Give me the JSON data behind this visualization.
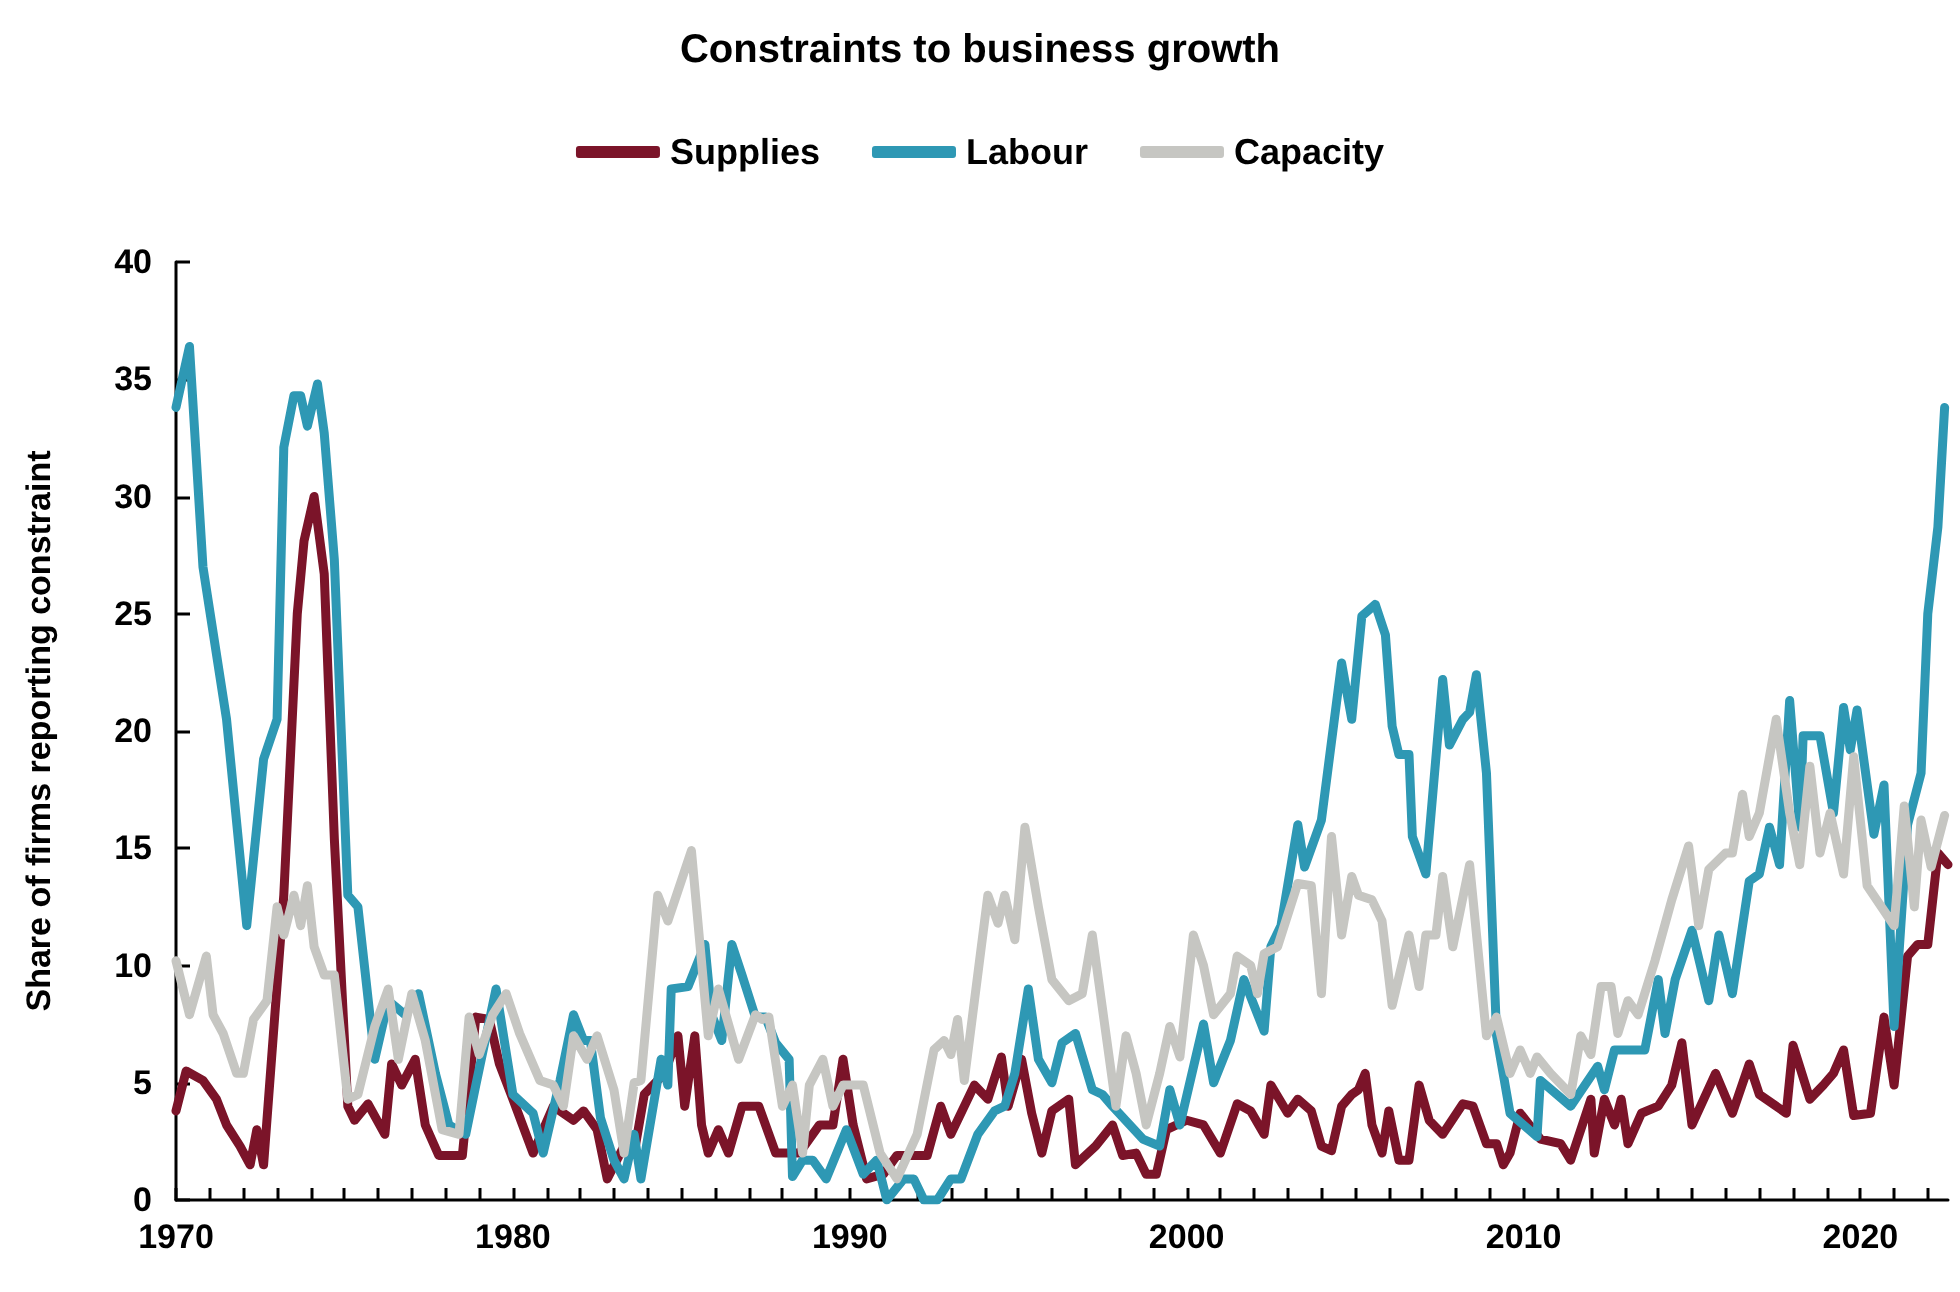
{
  "chart_data": {
    "type": "line",
    "title": "Constraints to business growth",
    "ylabel": "Share of firms reporting constraint",
    "legend": "top",
    "line_style": "solid",
    "xlim": [
      1970,
      2022.6
    ],
    "ylim": [
      0,
      40
    ],
    "yticks": [
      0,
      5,
      10,
      15,
      20,
      25,
      30,
      35,
      40
    ],
    "xticks": [
      1970,
      {
        "value": 1971,
        "label": null
      },
      {
        "value": 1972,
        "label": null
      },
      {
        "value": 1973,
        "label": null
      },
      {
        "value": 1974,
        "label": null
      },
      {
        "value": 1975,
        "label": null
      },
      {
        "value": 1976,
        "label": null
      },
      {
        "value": 1977,
        "label": null
      },
      {
        "value": 1978,
        "label": null
      },
      {
        "value": 1979,
        "label": null
      },
      1980,
      {
        "value": 1981,
        "label": null
      },
      {
        "value": 1982,
        "label": null
      },
      {
        "value": 1983,
        "label": null
      },
      {
        "value": 1984,
        "label": null
      },
      {
        "value": 1985,
        "label": null
      },
      {
        "value": 1986,
        "label": null
      },
      {
        "value": 1987,
        "label": null
      },
      {
        "value": 1988,
        "label": null
      },
      {
        "value": 1989,
        "label": null
      },
      1990,
      {
        "value": 1991,
        "label": null
      },
      {
        "value": 1992,
        "label": null
      },
      {
        "value": 1993,
        "label": null
      },
      {
        "value": 1994,
        "label": null
      },
      {
        "value": 1995,
        "label": null
      },
      {
        "value": 1996,
        "label": null
      },
      {
        "value": 1997,
        "label": null
      },
      {
        "value": 1998,
        "label": null
      },
      {
        "value": 1999,
        "label": null
      },
      2000,
      {
        "value": 2001,
        "label": null
      },
      {
        "value": 2002,
        "label": null
      },
      {
        "value": 2003,
        "label": null
      },
      {
        "value": 2004,
        "label": null
      },
      {
        "value": 2005,
        "label": null
      },
      {
        "value": 2006,
        "label": null
      },
      {
        "value": 2007,
        "label": null
      },
      {
        "value": 2008,
        "label": null
      },
      {
        "value": 2009,
        "label": null
      },
      2010,
      {
        "value": 2011,
        "label": null
      },
      {
        "value": 2012,
        "label": null
      },
      {
        "value": 2013,
        "label": null
      },
      {
        "value": 2014,
        "label": null
      },
      {
        "value": 2015,
        "label": null
      },
      {
        "value": 2016,
        "label": null
      },
      {
        "value": 2017,
        "label": null
      },
      {
        "value": 2018,
        "label": null
      },
      {
        "value": 2019,
        "label": null
      },
      2020,
      {
        "value": 2021,
        "label": null
      },
      {
        "value": 2022,
        "label": null
      }
    ],
    "series": [
      {
        "name": "Supplies",
        "color": "#7b1429",
        "x": [
          1970.0,
          1970.3,
          1970.8,
          1971.2,
          1971.5,
          1971.9,
          1972.2,
          1972.4,
          1972.6,
          1973.2,
          1973.6,
          1973.8,
          1974.1,
          1974.4,
          1974.7,
          1975.1,
          1975.3,
          1975.7,
          1976.2,
          1976.4,
          1976.7,
          1977.1,
          1977.4,
          1977.8,
          1978.5,
          1978.9,
          1979.3,
          1979.6,
          1980.0,
          1980.6,
          1981.2,
          1981.8,
          1982.1,
          1982.5,
          1982.8,
          1983.3,
          1983.6,
          1983.9,
          1984.5,
          1984.9,
          1985.1,
          1985.4,
          1985.6,
          1985.8,
          1986.1,
          1986.4,
          1986.8,
          1987.3,
          1987.8,
          1988.5,
          1989.1,
          1989.5,
          1989.8,
          1990.1,
          1990.5,
          1991.0,
          1991.4,
          1992.3,
          1992.7,
          1993.0,
          1993.7,
          1994.1,
          1994.5,
          1994.7,
          1995.1,
          1995.4,
          1995.7,
          1996.0,
          1996.5,
          1996.7,
          1997.3,
          1997.8,
          1998.1,
          1998.5,
          1998.8,
          1999.1,
          1999.4,
          2000.0,
          2000.5,
          2001.0,
          2001.5,
          2001.9,
          2002.3,
          2002.5,
          2003.0,
          2003.3,
          2003.7,
          2004.0,
          2004.3,
          2004.6,
          2004.9,
          2005.1,
          2005.3,
          2005.5,
          2005.8,
          2006.0,
          2006.3,
          2006.6,
          2006.9,
          2007.2,
          2007.6,
          2008.2,
          2008.5,
          2008.9,
          2009.2,
          2009.4,
          2009.6,
          2009.9,
          2010.5,
          2011.1,
          2011.4,
          2012.0,
          2012.1,
          2012.4,
          2012.7,
          2012.9,
          2013.1,
          2013.5,
          2014.0,
          2014.4,
          2014.7,
          2015.0,
          2015.7,
          2016.2,
          2016.7,
          2017.0,
          2017.8,
          2018.0,
          2018.5,
          2018.9,
          2019.2,
          2019.5,
          2019.8,
          2020.3,
          2020.7,
          2021.0,
          2021.4,
          2021.7,
          2022.0,
          2022.3,
          2022.6
        ],
        "values": [
          3.8,
          5.5,
          5.1,
          4.3,
          3.2,
          2.3,
          1.5,
          3,
          1.5,
          13,
          25,
          28.1,
          30,
          26.7,
          15.4,
          4,
          3.4,
          4.1,
          2.8,
          5.8,
          4.9,
          6,
          3.2,
          1.9,
          1.9,
          7.8,
          7.7,
          5.8,
          4.3,
          2,
          4,
          3.4,
          3.8,
          3,
          0.9,
          2.3,
          2,
          4.5,
          5.4,
          7,
          4,
          7,
          3.2,
          2,
          3,
          2,
          4,
          4,
          2,
          2,
          3.2,
          3.2,
          6,
          3.2,
          0.9,
          1.1,
          1.9,
          1.9,
          4,
          2.8,
          4.9,
          4.3,
          6.1,
          4,
          6,
          3.7,
          2,
          3.8,
          4.3,
          1.5,
          2.3,
          3.2,
          1.9,
          2,
          1.1,
          1.1,
          3,
          3.4,
          3.2,
          2,
          4.1,
          3.8,
          2.8,
          4.9,
          3.7,
          4.3,
          3.8,
          2.3,
          2.1,
          4,
          4.5,
          4.7,
          5.4,
          3.2,
          2,
          3.8,
          1.7,
          1.7,
          4.9,
          3.4,
          2.8,
          4.1,
          4,
          2.4,
          2.4,
          1.5,
          2,
          3.7,
          2.6,
          2.4,
          1.7,
          4.3,
          2,
          4.3,
          3.2,
          4.3,
          2.4,
          3.7,
          4,
          4.9,
          6.7,
          3.2,
          5.4,
          3.7,
          5.8,
          4.5,
          3.7,
          6.6,
          4.3,
          4.9,
          5.4,
          6.4,
          3.6,
          3.7,
          7.8,
          4.9,
          10.4,
          10.9,
          10.9,
          14.8,
          14.3
        ]
      },
      {
        "name": "Labour",
        "color": "#2e98b4",
        "x": [
          1970.0,
          1970.4,
          1970.8,
          1971.5,
          1972.1,
          1972.6,
          1973.0,
          1973.2,
          1973.5,
          1973.7,
          1973.9,
          1974.2,
          1974.4,
          1974.7,
          1975.1,
          1975.4,
          1975.9,
          1976.3,
          1976.8,
          1977.2,
          1977.7,
          1978.1,
          1978.6,
          1978.9,
          1979.5,
          1980.0,
          1980.6,
          1980.9,
          1981.4,
          1981.8,
          1982.1,
          1982.3,
          1982.6,
          1983.0,
          1983.3,
          1983.6,
          1983.8,
          1984.4,
          1984.6,
          1984.7,
          1985.2,
          1985.7,
          1985.9,
          1986.2,
          1986.5,
          1986.8,
          1987.2,
          1987.5,
          1987.8,
          1988.2,
          1988.3,
          1988.6,
          1988.9,
          1989.3,
          1989.9,
          1990.4,
          1990.8,
          1991.1,
          1991.6,
          1991.9,
          1992.2,
          1992.6,
          1993.0,
          1993.3,
          1993.8,
          1994.3,
          1994.6,
          1994.9,
          1995.3,
          1995.6,
          1996.0,
          1996.3,
          1996.7,
          1997.2,
          1997.5,
          1997.8,
          1998.7,
          1999.2,
          1999.5,
          1999.8,
          2000.5,
          2000.8,
          2001.3,
          2001.7,
          2002.3,
          2002.5,
          2002.8,
          2003.3,
          2003.5,
          2004.0,
          2004.6,
          2004.9,
          2005.2,
          2005.6,
          2005.9,
          2006.1,
          2006.3,
          2006.6,
          2006.7,
          2007.1,
          2007.6,
          2007.8,
          2008.2,
          2008.4,
          2008.6,
          2008.9,
          2009.2,
          2009.6,
          2010.4,
          2010.5,
          2011.4,
          2012.2,
          2012.4,
          2012.7,
          2013.6,
          2014.0,
          2014.2,
          2014.5,
          2015.0,
          2015.5,
          2015.8,
          2016.2,
          2016.7,
          2017.0,
          2017.3,
          2017.6,
          2017.9,
          2018.2,
          2018.3,
          2018.8,
          2019.2,
          2019.5,
          2019.7,
          2019.9,
          2020.4,
          2020.7,
          2021.0,
          2021.4,
          2021.8,
          2022.0,
          2022.3,
          2022.5
        ],
        "values": [
          33.8,
          36.4,
          27,
          20.5,
          11.7,
          18.8,
          20.5,
          32.1,
          34.3,
          34.3,
          33,
          34.8,
          32.7,
          27.3,
          13,
          12.5,
          6,
          8.5,
          7.9,
          8.8,
          5.4,
          3.2,
          2.8,
          4.9,
          9,
          4.5,
          3.7,
          2,
          5.1,
          7.9,
          6.8,
          6.8,
          3.5,
          1.7,
          0.9,
          2.8,
          0.9,
          6,
          4.9,
          9,
          9.1,
          10.9,
          7.9,
          6.8,
          10.9,
          9.6,
          7.8,
          7.8,
          6.7,
          6,
          1,
          1.7,
          1.7,
          0.9,
          3,
          1.1,
          1.7,
          0,
          0.9,
          0.9,
          0,
          0,
          0.9,
          0.9,
          2.8,
          3.8,
          4,
          5.4,
          9,
          6,
          5,
          6.7,
          7.1,
          4.7,
          4.5,
          4,
          2.6,
          2.3,
          4.7,
          3.2,
          7.5,
          5,
          6.8,
          9.4,
          7.2,
          10.8,
          11.7,
          16,
          14.2,
          16.2,
          22.9,
          20.5,
          24.9,
          25.4,
          24.1,
          20.2,
          19,
          19,
          15.5,
          13.9,
          22.2,
          19.4,
          20.5,
          20.8,
          22.4,
          18.2,
          7,
          3.7,
          2.7,
          5.1,
          4,
          5.7,
          4.7,
          6.4,
          6.4,
          9.4,
          7.1,
          9.4,
          11.5,
          8.5,
          11.3,
          8.8,
          13.6,
          13.9,
          15.9,
          14.3,
          21.3,
          15.9,
          19.8,
          19.8,
          16.5,
          21,
          19.2,
          20.9,
          15.6,
          17.7,
          7.4,
          16,
          18.2,
          25,
          28.7,
          33.8
        ]
      },
      {
        "name": "Capacity",
        "color": "#c6c6c2",
        "x": [
          1970.0,
          1970.4,
          1970.9,
          1971.1,
          1971.4,
          1971.8,
          1972.0,
          1972.3,
          1972.7,
          1973.0,
          1973.2,
          1973.5,
          1973.7,
          1973.9,
          1974.1,
          1974.4,
          1974.7,
          1975.1,
          1975.4,
          1975.9,
          1976.3,
          1976.6,
          1977.0,
          1977.4,
          1977.9,
          1978.4,
          1978.7,
          1979.0,
          1979.4,
          1979.8,
          1980.2,
          1980.8,
          1981.2,
          1981.5,
          1981.8,
          1982.2,
          1982.5,
          1983.0,
          1983.3,
          1983.6,
          1983.8,
          1984.3,
          1984.6,
          1985.3,
          1985.8,
          1986.1,
          1986.7,
          1987.2,
          1987.4,
          1987.6,
          1988.0,
          1988.3,
          1988.6,
          1988.8,
          1989.2,
          1989.5,
          1989.8,
          1990.4,
          1990.9,
          1991.4,
          1992.0,
          1992.5,
          1992.8,
          1993.0,
          1993.2,
          1993.4,
          1994.1,
          1994.4,
          1994.6,
          1994.9,
          1995.2,
          1995.6,
          1996.0,
          1996.5,
          1996.9,
          1997.2,
          1997.9,
          1998.2,
          1998.5,
          1998.8,
          1999.2,
          1999.5,
          1999.8,
          2000.2,
          2000.5,
          2000.8,
          2001.3,
          2001.5,
          2001.9,
          2002.1,
          2002.3,
          2002.7,
          2003.3,
          2003.7,
          2004.0,
          2004.3,
          2004.6,
          2004.9,
          2005.1,
          2005.5,
          2005.8,
          2006.1,
          2006.6,
          2006.9,
          2007.1,
          2007.4,
          2007.6,
          2007.9,
          2008.4,
          2008.9,
          2009.2,
          2009.6,
          2009.9,
          2010.2,
          2010.4,
          2010.8,
          2011.4,
          2011.7,
          2012.0,
          2012.3,
          2012.6,
          2012.8,
          2013.1,
          2013.4,
          2013.9,
          2014.4,
          2014.9,
          2015.2,
          2015.5,
          2016.0,
          2016.2,
          2016.5,
          2016.7,
          2017.0,
          2017.5,
          2017.9,
          2018.2,
          2018.5,
          2018.8,
          2019.1,
          2019.5,
          2019.8,
          2020.2,
          2021.0,
          2021.3,
          2021.6,
          2021.8,
          2022.1,
          2022.5
        ],
        "values": [
          10.2,
          7.9,
          10.4,
          7.9,
          7.1,
          5.4,
          5.4,
          7.7,
          8.5,
          12.5,
          11.3,
          13,
          11.7,
          13.4,
          10.8,
          9.6,
          9.6,
          4.3,
          4.5,
          7.4,
          9,
          6,
          8.8,
          6.8,
          3,
          2.8,
          7.8,
          6.2,
          7.9,
          8.8,
          7.1,
          5.1,
          4.9,
          4,
          7,
          6,
          7,
          4.7,
          2,
          5,
          5.1,
          13,
          11.9,
          14.9,
          7,
          9,
          6,
          7.9,
          7.7,
          7.8,
          4,
          4.9,
          2,
          4.9,
          6,
          4,
          4.9,
          4.9,
          2,
          0.9,
          2.8,
          6.4,
          6.8,
          6.2,
          7.7,
          5.1,
          13,
          11.8,
          13,
          11.1,
          15.9,
          12.5,
          9.4,
          8.5,
          8.8,
          11.3,
          4,
          7,
          5.4,
          3.2,
          5.4,
          7.4,
          6.1,
          11.3,
          10,
          7.9,
          8.8,
          10.4,
          10,
          8.8,
          10.5,
          10.8,
          13.5,
          13.4,
          8.8,
          15.5,
          11.3,
          13.8,
          13,
          12.8,
          11.9,
          8.3,
          11.3,
          9.1,
          11.3,
          11.3,
          13.8,
          10.8,
          14.3,
          7,
          7.8,
          5.4,
          6.4,
          5.4,
          6.1,
          5.4,
          4.5,
          7,
          6.2,
          9.1,
          9.1,
          7.1,
          8.5,
          7.9,
          10.2,
          12.8,
          15.1,
          11.7,
          14.1,
          14.8,
          14.8,
          17.3,
          15.5,
          16.5,
          20.5,
          16.5,
          14.3,
          18.5,
          14.8,
          16.5,
          13.9,
          18.9,
          13.4,
          11.7,
          16.8,
          12.5,
          16.2,
          14.2,
          16.4
        ]
      }
    ]
  }
}
